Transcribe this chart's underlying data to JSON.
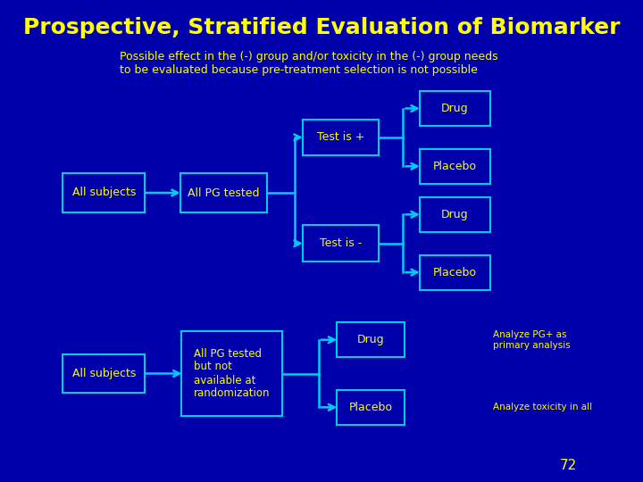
{
  "bg_color": "#0000AA",
  "title": "Prospective, Stratified Evaluation of Biomarker",
  "title_color": "#FFFF00",
  "subtitle": "Possible effect in the (-) group and/or toxicity in the (-) group needs\nto be evaluated because pre-treatment selection is not possible",
  "subtitle_color": "#FFFF00",
  "box_facecolor": "#0000AA",
  "box_edgecolor": "#00CCFF",
  "text_color": "#FFFF00",
  "arrow_color": "#00CCFF",
  "page_number": "72",
  "annotation1": "Analyze PG+ as\nprimary analysis",
  "annotation2": "Analyze toxicity in all"
}
